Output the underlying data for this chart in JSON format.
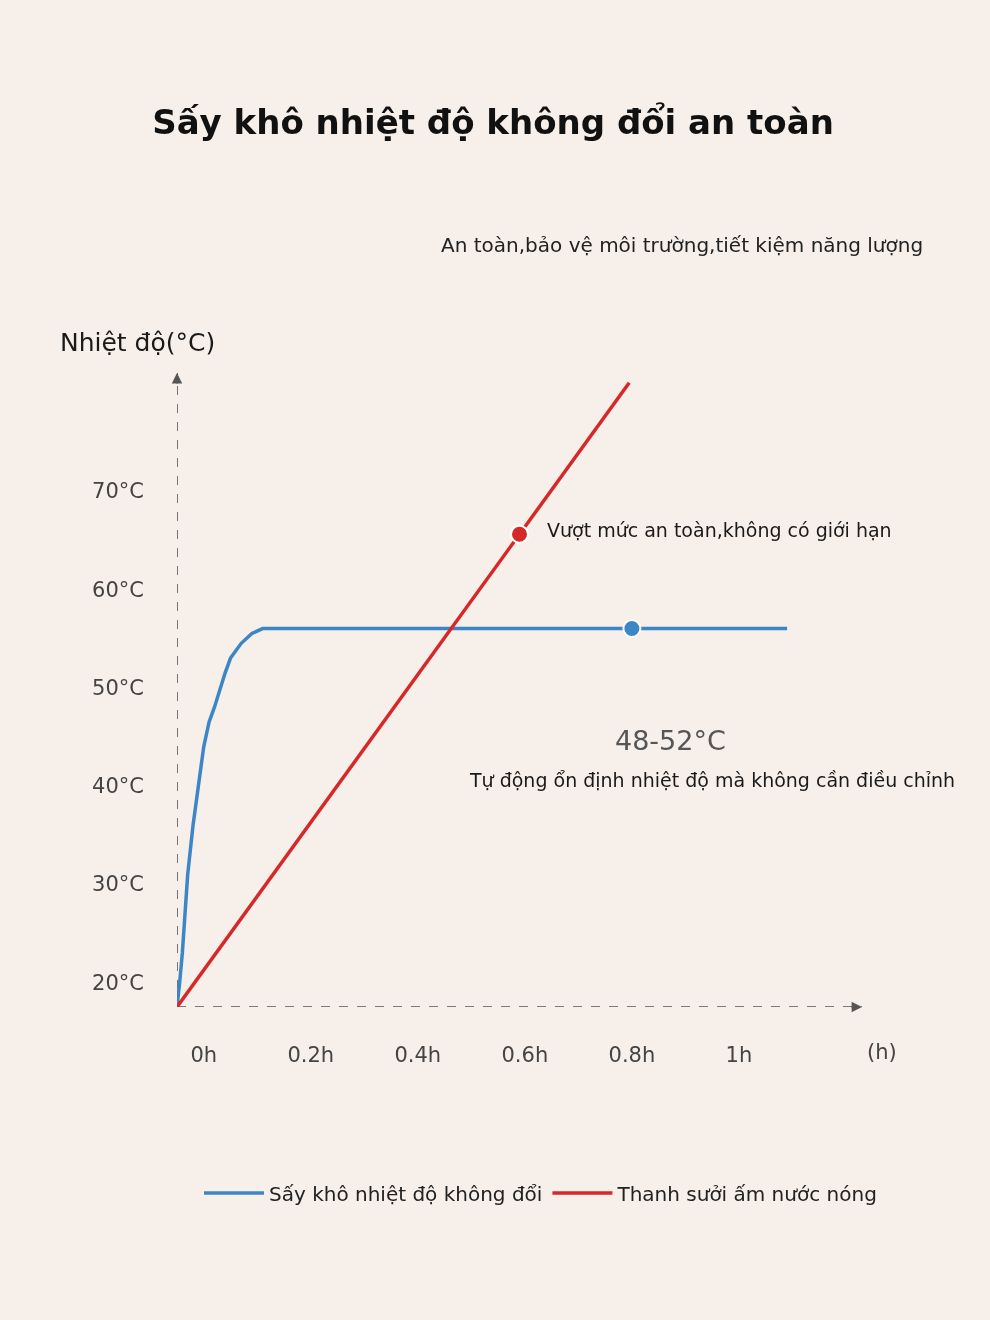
{
  "chart_data": {
    "type": "line",
    "title": "Sấy khô nhiệt độ không đổi an toàn",
    "subtitle": "An toàn,bảo vệ môi trường,tiết kiệm năng lượng",
    "xlabel": "(h)",
    "ylabel": "Nhiệt độ(°C)",
    "xlim": [
      -0.05,
      1.23
    ],
    "ylim": [
      17.5,
      82
    ],
    "xticks": [
      {
        "value": 0,
        "label": "0h"
      },
      {
        "value": 0.2,
        "label": "0.2h"
      },
      {
        "value": 0.4,
        "label": "0.4h"
      },
      {
        "value": 0.6,
        "label": "0.6h"
      },
      {
        "value": 0.8,
        "label": "0.8h"
      },
      {
        "value": 1,
        "label": "1h"
      }
    ],
    "yticks": [
      {
        "value": 20,
        "label": "20°C"
      },
      {
        "value": 30,
        "label": "30°C"
      },
      {
        "value": 40,
        "label": "40°C"
      },
      {
        "value": 50,
        "label": "50°C"
      },
      {
        "value": 60,
        "label": "60°C"
      },
      {
        "value": 70,
        "label": "70°C"
      }
    ],
    "series": [
      {
        "name": "Sấy khô nhiệt độ không đổi",
        "color": "#3d86c6",
        "x": [
          -0.05,
          -0.045,
          -0.04,
          -0.03,
          -0.02,
          -0.01,
          0.0,
          0.01,
          0.02,
          0.04,
          0.05,
          0.07,
          0.09,
          0.11,
          0.12,
          1.09
        ],
        "values": [
          17.5,
          20,
          23,
          31,
          36,
          40,
          44,
          46.5,
          48,
          51.5,
          53,
          54.5,
          55.5,
          56,
          56,
          56
        ]
      },
      {
        "name": "Thanh sưởi ấm nước nóng",
        "color": "#d62828",
        "x": [
          -0.05,
          0.795
        ],
        "values": [
          17.5,
          81
        ]
      },
      {
        "type": "scatter",
        "color": "#d62828",
        "x": [
          0.59
        ],
        "values": [
          65.6
        ]
      },
      {
        "type": "scatter",
        "color": "#3d86c6",
        "x": [
          0.8
        ],
        "values": [
          56
        ]
      }
    ],
    "annotations": [
      {
        "text": "Vượt mức an toàn,không có giới hạn",
        "x": 0.59,
        "y": 65.6
      },
      "48-52°C",
      "Tự động ổn định nhiệt độ mà không cần điều chỉnh"
    ],
    "legend": "bottom"
  }
}
